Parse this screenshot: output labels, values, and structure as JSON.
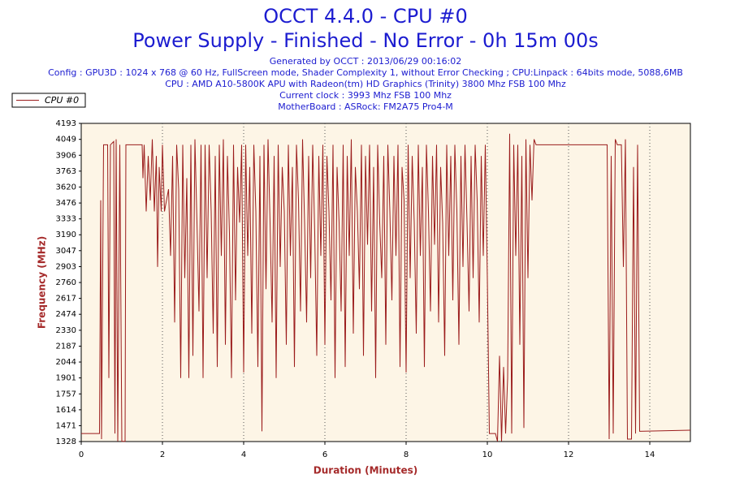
{
  "chart_data": {
    "type": "line",
    "title": "OCCT 4.4.0 - CPU #0",
    "subtitle": "Power Supply - Finished - No Error - 0h 15m 00s",
    "info_lines": [
      "Generated by OCCT : 2013/06/29 00:16:02",
      "Config : GPU3D : 1024 x 768 @ 60 Hz, FullScreen mode, Shader Complexity 1, without Error Checking ; CPU:Linpack : 64bits mode, 5088,6MB",
      "CPU : AMD A10-5800K APU with Radeon(tm) HD Graphics (Trinity) 3800 Mhz FSB 100 Mhz",
      "Current clock : 3993 Mhz FSB 100 Mhz",
      "MotherBoard : ASRock: FM2A75 Pro4-M"
    ],
    "x_label": "Duration (Minutes)",
    "y_label": "Frequency (MHz)",
    "xlim": [
      0,
      15
    ],
    "xticks": [
      0,
      2,
      4,
      6,
      8,
      10,
      12,
      14
    ],
    "ylim": [
      1328,
      4193
    ],
    "yticks": [
      1328,
      1471,
      1614,
      1757,
      1901,
      2044,
      2187,
      2330,
      2474,
      2617,
      2760,
      2903,
      3047,
      3190,
      3333,
      3476,
      3620,
      3763,
      3906,
      4049,
      4193
    ],
    "grid": true,
    "legend": "top-left",
    "x": [
      0,
      0.45,
      0.48,
      0.5,
      0.55,
      0.65,
      0.68,
      0.72,
      0.8,
      0.83,
      0.86,
      0.9,
      0.95,
      1.0,
      1.08,
      1.1,
      1.5,
      1.52,
      1.55,
      1.6,
      1.65,
      1.7,
      1.75,
      1.8,
      1.85,
      1.88,
      1.92,
      1.97,
      2.0,
      2.05,
      2.1,
      2.15,
      2.2,
      2.25,
      2.3,
      2.35,
      2.4,
      2.45,
      2.5,
      2.55,
      2.6,
      2.65,
      2.7,
      2.75,
      2.8,
      2.85,
      2.9,
      2.95,
      3.0,
      3.05,
      3.1,
      3.15,
      3.2,
      3.25,
      3.3,
      3.35,
      3.4,
      3.45,
      3.5,
      3.55,
      3.6,
      3.65,
      3.7,
      3.75,
      3.8,
      3.85,
      3.9,
      3.95,
      4.0,
      4.05,
      4.1,
      4.15,
      4.2,
      4.25,
      4.3,
      4.35,
      4.4,
      4.45,
      4.5,
      4.55,
      4.6,
      4.65,
      4.7,
      4.75,
      4.8,
      4.85,
      4.9,
      4.95,
      5.0,
      5.05,
      5.1,
      5.15,
      5.2,
      5.25,
      5.3,
      5.35,
      5.4,
      5.45,
      5.5,
      5.55,
      5.6,
      5.65,
      5.7,
      5.75,
      5.8,
      5.85,
      5.9,
      5.95,
      6.0,
      6.05,
      6.1,
      6.15,
      6.2,
      6.25,
      6.3,
      6.35,
      6.4,
      6.45,
      6.5,
      6.55,
      6.6,
      6.65,
      6.7,
      6.75,
      6.8,
      6.85,
      6.9,
      6.95,
      7.0,
      7.05,
      7.1,
      7.15,
      7.2,
      7.25,
      7.3,
      7.35,
      7.4,
      7.45,
      7.5,
      7.55,
      7.6,
      7.65,
      7.7,
      7.75,
      7.8,
      7.85,
      7.9,
      7.95,
      8.0,
      8.05,
      8.1,
      8.15,
      8.2,
      8.25,
      8.3,
      8.35,
      8.4,
      8.45,
      8.5,
      8.55,
      8.6,
      8.65,
      8.7,
      8.75,
      8.8,
      8.85,
      8.9,
      8.95,
      9.0,
      9.05,
      9.1,
      9.15,
      9.2,
      9.25,
      9.3,
      9.35,
      9.4,
      9.45,
      9.5,
      9.55,
      9.6,
      9.65,
      9.7,
      9.75,
      9.8,
      9.85,
      9.9,
      9.95,
      10.0,
      10.05,
      10.2,
      10.25,
      10.3,
      10.35,
      10.4,
      10.45,
      10.5,
      10.55,
      10.6,
      10.65,
      10.7,
      10.75,
      10.8,
      10.85,
      10.9,
      10.95,
      11.0,
      11.05,
      11.1,
      11.15,
      11.2,
      12.95,
      13.0,
      13.05,
      13.1,
      13.15,
      13.2,
      13.3,
      13.35,
      13.4,
      13.45,
      13.55,
      13.6,
      13.65,
      13.7,
      13.75,
      15
    ],
    "series": [
      {
        "name": "CPU #0",
        "color": "#9b1c1c",
        "values": [
          1400,
          1400,
          3500,
          1350,
          4000,
          4000,
          1900,
          4000,
          4030,
          1400,
          4050,
          1330,
          4000,
          1330,
          1330,
          4000,
          4000,
          3700,
          4000,
          3400,
          3900,
          3500,
          4050,
          3400,
          3900,
          2900,
          3800,
          3400,
          4000,
          3400,
          3500,
          3600,
          3000,
          3900,
          2400,
          4000,
          3600,
          1900,
          4000,
          2800,
          3700,
          1900,
          4000,
          2100,
          4050,
          3300,
          2500,
          4000,
          1900,
          4000,
          2800,
          4000,
          3400,
          2300,
          3900,
          2000,
          4000,
          3000,
          4050,
          2200,
          3900,
          3200,
          1900,
          4000,
          2600,
          3800,
          3300,
          4000,
          1950,
          4000,
          3000,
          3800,
          2300,
          4000,
          3400,
          2000,
          3900,
          1420,
          4000,
          2700,
          4050,
          3300,
          2400,
          3900,
          1900,
          4000,
          2900,
          3800,
          3400,
          2200,
          4000,
          3000,
          3800,
          2000,
          4000,
          3500,
          2500,
          4050,
          3300,
          2400,
          3900,
          2800,
          4000,
          3200,
          2100,
          3900,
          3000,
          4000,
          2200,
          3900,
          3400,
          2600,
          4000,
          1900,
          3800,
          3300,
          2500,
          4000,
          2000,
          3900,
          3000,
          4050,
          2300,
          3800,
          3400,
          2700,
          4000,
          2100,
          3900,
          3100,
          4000,
          2500,
          3800,
          1900,
          4000,
          3300,
          2800,
          3900,
          2200,
          4000,
          3400,
          2600,
          3900,
          3000,
          4000,
          2000,
          3800,
          3500,
          1950,
          4000,
          2800,
          3900,
          3300,
          2300,
          4000,
          3000,
          3800,
          2000,
          4000,
          3400,
          2500,
          3900,
          3100,
          4000,
          2400,
          3800,
          3300,
          2100,
          4000,
          3000,
          3900,
          2600,
          4000,
          3400,
          2200,
          3900,
          2900,
          4000,
          3300,
          2500,
          3900,
          2800,
          4000,
          3500,
          2400,
          3900,
          3000,
          4000,
          2800,
          1400,
          1400,
          1330,
          2100,
          1330,
          2000,
          1400,
          1900,
          4100,
          1400,
          4000,
          3000,
          4000,
          2200,
          3900,
          1450,
          4050,
          2800,
          4000,
          3500,
          4050,
          4000,
          4000,
          1350,
          3900,
          1400,
          4050,
          4000,
          4000,
          2900,
          4050,
          1350,
          1350,
          3800,
          1400,
          4000,
          1420,
          1430
        ]
      }
    ]
  }
}
